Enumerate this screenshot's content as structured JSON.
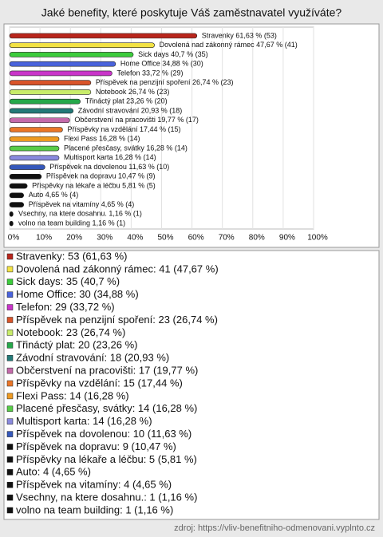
{
  "chart_data": {
    "type": "hbar",
    "title": "Jaké benefity, které poskytuje Váš zaměstnavatel využíváte?",
    "categories": [
      "Stravenky",
      "Dovolená nad zákonný rámec",
      "Sick days",
      "Home Office",
      "Telefon",
      "Příspěvek na penzijní spoření",
      "Notebook",
      "Třináctý plat",
      "Závodní stravování",
      "Občerstvení na pracovišti",
      "Příspěvky na vzdělání",
      "Flexi Pass",
      "Placené přesčasy, svátky",
      "Multisport karta",
      "Příspěvek na dovolenou",
      "Příspěvek na dopravu",
      "Příspěvky na lékaře a léčbu",
      "Auto",
      "Příspěvek na vitamíny",
      "Vsechny, na ktere dosahnu.",
      "volno na team building"
    ],
    "values": [
      61.63,
      47.67,
      40.7,
      34.88,
      33.72,
      26.74,
      26.74,
      23.26,
      20.93,
      19.77,
      17.44,
      16.28,
      16.28,
      16.28,
      11.63,
      10.47,
      5.81,
      4.65,
      4.65,
      1.16,
      1.16
    ],
    "counts": [
      53,
      41,
      35,
      30,
      29,
      23,
      23,
      20,
      18,
      17,
      15,
      14,
      14,
      14,
      10,
      9,
      5,
      4,
      4,
      1,
      1
    ],
    "value_labels": [
      "Stravenky 61,63 % (53)",
      "Dovolená nad zákonný rámec 47,67 % (41)",
      "Sick days 40,7 % (35)",
      "Home Office 34,88 % (30)",
      "Telefon 33,72 % (29)",
      "Příspěvek na penzijní spoření 26,74 % (23)",
      "Notebook 26,74 % (23)",
      "Třináctý plat 23,26 % (20)",
      "Závodní stravování 20,93 % (18)",
      "Občerstvení na pracovišti 19,77 % (17)",
      "Příspěvky na vzdělání 17,44 % (15)",
      "Flexi Pass 16,28 % (14)",
      "Placené přesčasy, svátky 16,28 % (14)",
      "Multisport karta 16,28 % (14)",
      "Příspěvek na dovolenou 11,63 % (10)",
      "Příspěvek na dopravu 10,47 % (9)",
      "Příspěvky na lékaře a léčbu 5,81 % (5)",
      "Auto 4,65 % (4)",
      "Příspěvek na vitamíny 4,65 % (4)",
      "Vsechny, na ktere dosahnu. 1,16 % (1)",
      "volno na team building 1,16 % (1)"
    ],
    "legend_labels": [
      "Stravenky: 53 (61,63 %)",
      "Dovolená nad zákonný rámec: 41 (47,67 %)",
      "Sick days: 35 (40,7 %)",
      "Home Office: 30 (34,88 %)",
      "Telefon: 29 (33,72 %)",
      "Příspěvek na penzijní spoření: 23 (26,74 %)",
      "Notebook: 23 (26,74 %)",
      "Třináctý plat: 20 (23,26 %)",
      "Závodní stravování: 18 (20,93 %)",
      "Občerstvení na pracovišti: 17 (19,77 %)",
      "Příspěvky na vzdělání: 15 (17,44 %)",
      "Flexi Pass: 14 (16,28 %)",
      "Placené přesčasy, svátky: 14 (16,28 %)",
      "Multisport karta: 14 (16,28 %)",
      "Příspěvek na dovolenou: 10 (11,63 %)",
      "Příspěvek na dopravu: 9 (10,47 %)",
      "Příspěvky na lékaře a léčbu: 5 (5,81 %)",
      "Auto: 4 (4,65 %)",
      "Příspěvek na vitamíny: 4 (4,65 %)",
      "Vsechny, na ktere dosahnu.: 1 (1,16 %)",
      "volno na team building: 1 (1,16 %)"
    ],
    "colors": [
      "#b8261c",
      "#f2e244",
      "#3ccc3c",
      "#4a63dc",
      "#c935c9",
      "#d9542a",
      "#c8ec6a",
      "#25a84a",
      "#237a78",
      "#c46aaa",
      "#ea7628",
      "#ee9a22",
      "#58cc48",
      "#8a8ade",
      "#3558bb",
      "#111111",
      "#111111",
      "#111111",
      "#111111",
      "#111111",
      "#111111"
    ],
    "xlim": [
      0,
      100
    ],
    "xticks": [
      {
        "value": 0,
        "label": "0%"
      },
      {
        "value": 10,
        "label": "10%"
      },
      {
        "value": 20,
        "label": "20%"
      },
      {
        "value": 30,
        "label": "30%"
      },
      {
        "value": 40,
        "label": "40%"
      },
      {
        "value": 50,
        "label": "50%"
      },
      {
        "value": 60,
        "label": "60%"
      },
      {
        "value": 70,
        "label": "70%"
      },
      {
        "value": 80,
        "label": "80%"
      },
      {
        "value": 90,
        "label": "90%"
      },
      {
        "value": 100,
        "label": "100%"
      }
    ],
    "source": "zdroj: https://vliv-benefitniho-odmenovani.vyplnto.cz"
  }
}
